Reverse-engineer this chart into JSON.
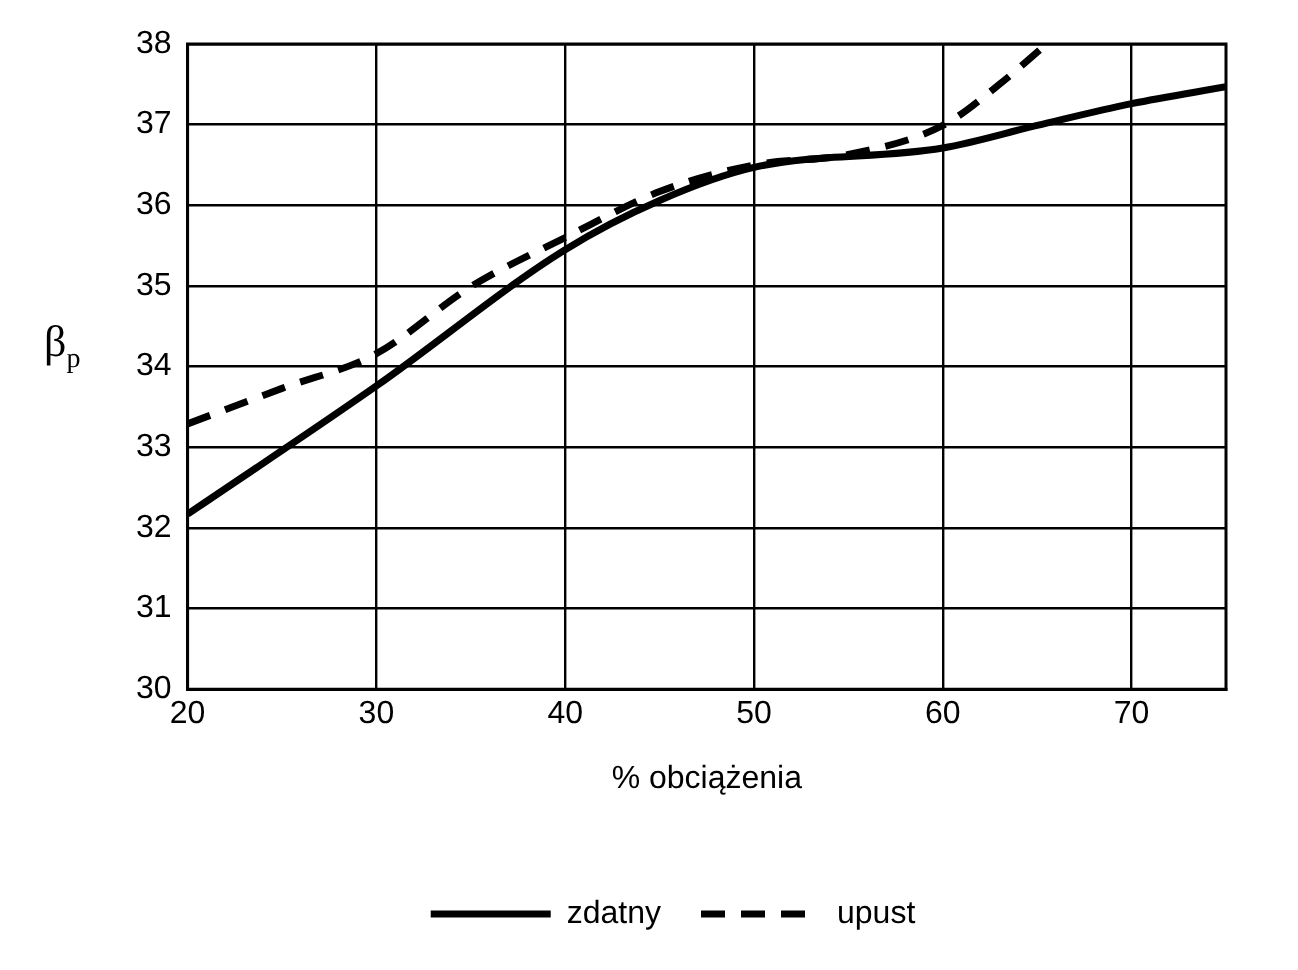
{
  "chart_data": {
    "type": "line",
    "xlabel": "% obciążenia",
    "ylabel": "β$_{p}$",
    "xlim": [
      20,
      75
    ],
    "xticks": [
      20,
      30,
      40,
      50,
      60,
      70
    ],
    "ylim": [
      30,
      38
    ],
    "yticks": [
      30,
      31,
      32,
      33,
      34,
      35,
      36,
      37,
      38
    ],
    "grid": true,
    "legend": "bottom",
    "marker": "none",
    "series": [
      {
        "name": "zdatny",
        "color": "#000000",
        "line_style": "solid",
        "x": [
          20,
          30,
          40,
          45,
          50,
          60,
          65,
          70,
          75
        ],
        "values": [
          32.17,
          33.76,
          35.45,
          36.06,
          36.47,
          36.71,
          36.99,
          37.26,
          37.47
        ]
      },
      {
        "name": "upust",
        "color": "#000000",
        "line_style": "dashed",
        "x": [
          20,
          25,
          30,
          35,
          40,
          45,
          50,
          55,
          60,
          63,
          65.5
        ],
        "values": [
          33.29,
          33.73,
          34.16,
          34.99,
          35.6,
          36.17,
          36.5,
          36.63,
          36.99,
          37.5,
          38
        ]
      }
    ]
  }
}
